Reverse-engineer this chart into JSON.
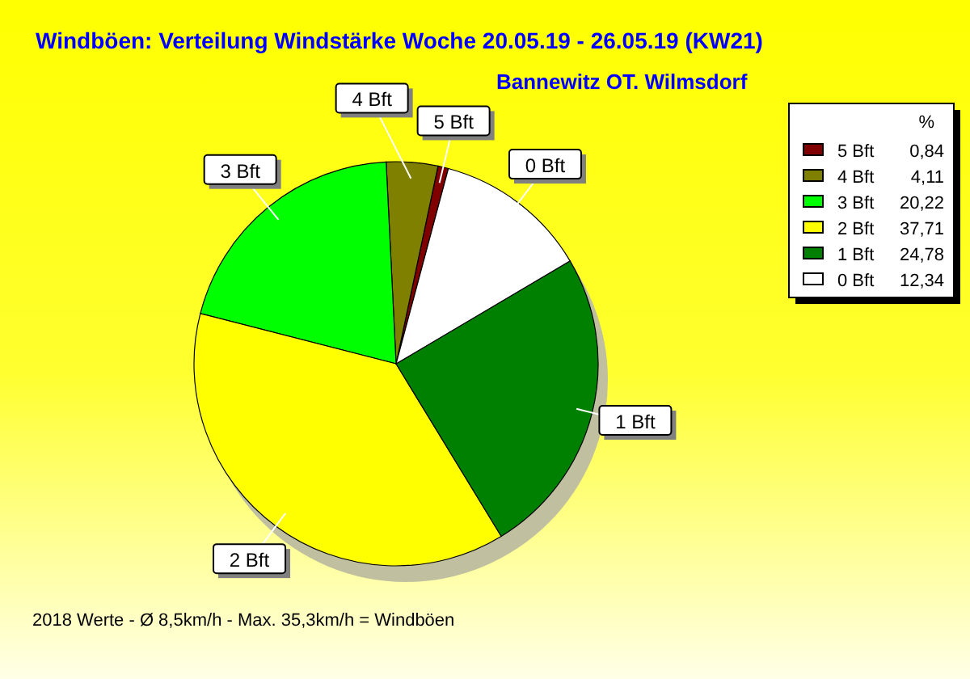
{
  "chart_data": {
    "type": "pie",
    "title": "Windböen: Verteilung Windstärke  Woche 20.05.19 - 26.05.19 (KW21)",
    "subtitle": "Bannewitz OT. Wilmsdorf",
    "legend_title": "%",
    "categories": [
      "5 Bft",
      "4 Bft",
      "3 Bft",
      "2 Bft",
      "1 Bft",
      "0 Bft"
    ],
    "values": [
      0.84,
      4.11,
      20.22,
      37.71,
      24.78,
      12.34
    ],
    "colors": [
      "#800000",
      "#808000",
      "#00ff00",
      "#ffff00",
      "#008000",
      "#ffffff"
    ],
    "value_labels": [
      "0,84",
      "4,11",
      "20,22",
      "37,71",
      "24,78",
      "12,34"
    ],
    "legend": "top right",
    "annotations": [
      "2018 Werte   -   Ø 8,5km/h  -  Max. 35,3km/h = Windböen"
    ]
  }
}
